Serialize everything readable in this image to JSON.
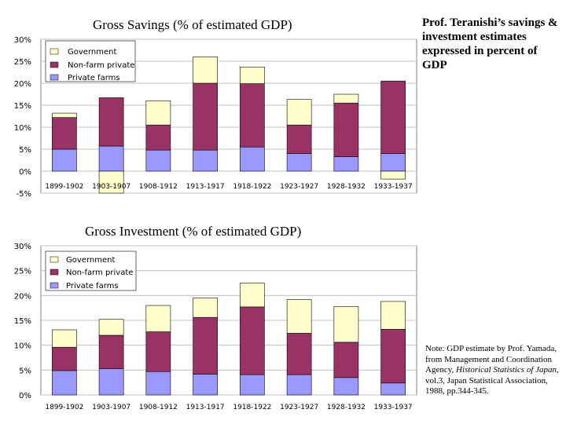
{
  "side_panel": {
    "heading": "Prof. Teranishi’s savings & investment estimates expressed in percent of GDP",
    "note_prefix": "Note: GDP estimate by Prof. Yamada, from Management and Coordination Agency, ",
    "note_title": "Historical Statistics of Japan",
    "note_suffix": ", vol.3, Japan Statistical Association, 1988, pp.344-345."
  },
  "colors": {
    "government": "#ffffcc",
    "non_farm": "#993366",
    "private_farms": "#9999ff",
    "gridline": "#c0c0c0"
  },
  "chart_data": [
    {
      "type": "bar",
      "stacked": true,
      "title": "Gross Savings (% of estimated GDP)",
      "categories": [
        "1899-1902",
        "1903-1907",
        "1908-1912",
        "1913-1917",
        "1918-1922",
        "1923-1927",
        "1928-1932",
        "1933-1937"
      ],
      "series": [
        {
          "name": "Private farms",
          "values": [
            5.0,
            5.7,
            4.8,
            4.8,
            5.5,
            4.0,
            3.3,
            4.0
          ]
        },
        {
          "name": "Non-farm private",
          "values": [
            7.2,
            11.0,
            5.7,
            15.2,
            14.4,
            6.5,
            12.2,
            16.5
          ]
        },
        {
          "name": "Government",
          "values": [
            1.0,
            -5.0,
            5.5,
            6.0,
            3.8,
            5.8,
            2.0,
            -1.8
          ]
        }
      ],
      "ylim": [
        -5,
        30
      ],
      "yticks": [
        "-5%",
        "0%",
        "5%",
        "10%",
        "15%",
        "20%",
        "25%",
        "30%"
      ],
      "grid": true,
      "legend": "top-left"
    },
    {
      "type": "bar",
      "stacked": true,
      "title": "Gross Investment (% of estimated GDP)",
      "categories": [
        "1899-1902",
        "1903-1907",
        "1908-1912",
        "1913-1917",
        "1918-1922",
        "1923-1927",
        "1928-1932",
        "1933-1937"
      ],
      "series": [
        {
          "name": "Private farms",
          "values": [
            4.9,
            5.3,
            4.7,
            4.2,
            4.1,
            4.1,
            3.5,
            2.4
          ]
        },
        {
          "name": "Non-farm private",
          "values": [
            4.7,
            6.7,
            8.0,
            11.4,
            13.6,
            8.3,
            7.1,
            10.8
          ]
        },
        {
          "name": "Government",
          "values": [
            3.5,
            3.2,
            5.3,
            3.9,
            4.8,
            6.8,
            7.2,
            5.6
          ]
        }
      ],
      "ylim": [
        0,
        30
      ],
      "yticks": [
        "0%",
        "5%",
        "10%",
        "15%",
        "20%",
        "25%",
        "30%"
      ],
      "grid": true,
      "legend": "top-left"
    }
  ]
}
